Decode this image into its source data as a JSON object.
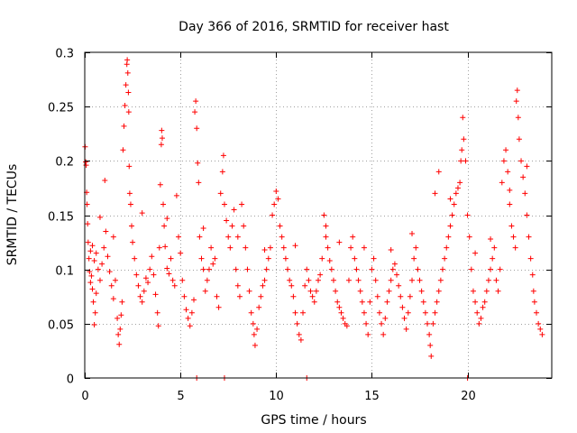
{
  "chart_data": {
    "type": "scatter",
    "title": "Day 366 of 2016, SRMTID for receiver hast",
    "xlabel": "GPS time / hours",
    "ylabel": "SRMTID / TECUs",
    "xlim": [
      0,
      24.4
    ],
    "ylim": [
      0,
      0.3
    ],
    "x_ticks": [
      0,
      5,
      10,
      15,
      20
    ],
    "x_tick_labels": [
      "0",
      "5",
      "10",
      "15",
      "20"
    ],
    "y_ticks": [
      0,
      0.05,
      0.1,
      0.15,
      0.2,
      0.25,
      0.3
    ],
    "y_tick_labels": [
      "0",
      "0.05",
      "0.1",
      "0.15",
      "0.2",
      "0.25",
      "0.3"
    ],
    "grid": true,
    "marker": "+",
    "color": "#ff0000",
    "series": [
      {
        "name": "SRMTID",
        "points": [
          [
            0.02,
            0.213
          ],
          [
            0.05,
            0.199
          ],
          [
            0.07,
            0.196
          ],
          [
            0.1,
            0.171
          ],
          [
            0.12,
            0.16
          ],
          [
            0.15,
            0.142
          ],
          [
            0.18,
            0.125
          ],
          [
            0.22,
            0.11
          ],
          [
            0.25,
            0.098
          ],
          [
            0.3,
            0.088
          ],
          [
            0.35,
            0.094
          ],
          [
            0.4,
            0.082
          ],
          [
            0.45,
            0.07
          ],
          [
            0.5,
            0.049
          ],
          [
            0.55,
            0.06
          ],
          [
            0.6,
            0.078
          ],
          [
            0.3,
            0.117
          ],
          [
            0.4,
            0.122
          ],
          [
            0.5,
            0.108
          ],
          [
            0.6,
            0.115
          ],
          [
            0.7,
            0.1
          ],
          [
            0.8,
            0.09
          ],
          [
            0.9,
            0.105
          ],
          [
            1.0,
            0.12
          ],
          [
            1.05,
            0.182
          ],
          [
            1.1,
            0.135
          ],
          [
            1.2,
            0.112
          ],
          [
            1.3,
            0.098
          ],
          [
            1.4,
            0.085
          ],
          [
            1.5,
            0.073
          ],
          [
            1.6,
            0.09
          ],
          [
            1.7,
            0.055
          ],
          [
            1.75,
            0.04
          ],
          [
            1.8,
            0.031
          ],
          [
            1.85,
            0.045
          ],
          [
            1.9,
            0.058
          ],
          [
            1.95,
            0.07
          ],
          [
            2.0,
            0.21
          ],
          [
            2.05,
            0.232
          ],
          [
            2.1,
            0.251
          ],
          [
            2.15,
            0.27
          ],
          [
            2.2,
            0.289
          ],
          [
            2.22,
            0.293
          ],
          [
            2.25,
            0.281
          ],
          [
            2.28,
            0.263
          ],
          [
            2.3,
            0.245
          ],
          [
            2.32,
            0.195
          ],
          [
            2.35,
            0.17
          ],
          [
            2.4,
            0.16
          ],
          [
            2.45,
            0.14
          ],
          [
            2.5,
            0.125
          ],
          [
            2.6,
            0.11
          ],
          [
            2.7,
            0.095
          ],
          [
            2.8,
            0.085
          ],
          [
            2.9,
            0.075
          ],
          [
            3.0,
            0.07
          ],
          [
            3.1,
            0.08
          ],
          [
            3.2,
            0.092
          ],
          [
            3.3,
            0.088
          ],
          [
            3.4,
            0.1
          ],
          [
            3.5,
            0.112
          ],
          [
            3.6,
            0.095
          ],
          [
            3.7,
            0.077
          ],
          [
            3.8,
            0.06
          ],
          [
            3.85,
            0.048
          ],
          [
            3.9,
            0.12
          ],
          [
            3.95,
            0.178
          ],
          [
            4.0,
            0.215
          ],
          [
            4.02,
            0.228
          ],
          [
            4.05,
            0.221
          ],
          [
            4.1,
            0.16
          ],
          [
            4.15,
            0.14
          ],
          [
            4.2,
            0.121
          ],
          [
            4.3,
            0.101
          ],
          [
            4.4,
            0.096
          ],
          [
            4.5,
            0.11
          ],
          [
            4.6,
            0.09
          ],
          [
            4.7,
            0.085
          ],
          [
            4.8,
            0.168
          ],
          [
            4.9,
            0.13
          ],
          [
            5.0,
            0.115
          ],
          [
            5.1,
            0.09
          ],
          [
            5.2,
            0.075
          ],
          [
            5.3,
            0.063
          ],
          [
            5.4,
            0.055
          ],
          [
            5.5,
            0.048
          ],
          [
            5.6,
            0.06
          ],
          [
            5.7,
            0.072
          ],
          [
            5.75,
            0.245
          ],
          [
            5.8,
            0.255
          ],
          [
            5.85,
            0.23
          ],
          [
            5.9,
            0.198
          ],
          [
            5.95,
            0.18
          ],
          [
            6.0,
            0.13
          ],
          [
            6.1,
            0.11
          ],
          [
            6.2,
            0.1
          ],
          [
            6.3,
            0.08
          ],
          [
            6.4,
            0.09
          ],
          [
            6.5,
            0.1
          ],
          [
            6.6,
            0.12
          ],
          [
            6.7,
            0.105
          ],
          [
            6.8,
            0.11
          ],
          [
            6.9,
            0.075
          ],
          [
            7.0,
            0.065
          ],
          [
            7.1,
            0.17
          ],
          [
            7.2,
            0.19
          ],
          [
            7.25,
            0.205
          ],
          [
            7.3,
            0.16
          ],
          [
            7.4,
            0.145
          ],
          [
            7.5,
            0.13
          ],
          [
            7.6,
            0.12
          ],
          [
            7.7,
            0.14
          ],
          [
            7.8,
            0.155
          ],
          [
            7.9,
            0.1
          ],
          [
            8.0,
            0.085
          ],
          [
            8.1,
            0.075
          ],
          [
            8.2,
            0.16
          ],
          [
            8.3,
            0.14
          ],
          [
            8.4,
            0.12
          ],
          [
            8.5,
            0.1
          ],
          [
            8.6,
            0.08
          ],
          [
            8.7,
            0.06
          ],
          [
            8.8,
            0.05
          ],
          [
            8.85,
            0.04
          ],
          [
            8.9,
            0.03
          ],
          [
            9.0,
            0.045
          ],
          [
            9.1,
            0.065
          ],
          [
            9.2,
            0.075
          ],
          [
            9.3,
            0.085
          ],
          [
            9.4,
            0.09
          ],
          [
            9.5,
            0.1
          ],
          [
            9.6,
            0.11
          ],
          [
            9.7,
            0.12
          ],
          [
            9.8,
            0.15
          ],
          [
            9.9,
            0.16
          ],
          [
            10.0,
            0.172
          ],
          [
            10.1,
            0.165
          ],
          [
            10.2,
            0.14
          ],
          [
            10.3,
            0.13
          ],
          [
            10.4,
            0.12
          ],
          [
            10.5,
            0.11
          ],
          [
            10.6,
            0.1
          ],
          [
            10.7,
            0.09
          ],
          [
            10.8,
            0.085
          ],
          [
            10.9,
            0.075
          ],
          [
            11.0,
            0.06
          ],
          [
            11.1,
            0.05
          ],
          [
            11.2,
            0.04
          ],
          [
            11.3,
            0.035
          ],
          [
            11.4,
            0.06
          ],
          [
            11.5,
            0.085
          ],
          [
            11.6,
            0.1
          ],
          [
            11.7,
            0.09
          ],
          [
            11.8,
            0.08
          ],
          [
            11.9,
            0.075
          ],
          [
            12.0,
            0.07
          ],
          [
            12.1,
            0.08
          ],
          [
            12.2,
            0.09
          ],
          [
            12.3,
            0.095
          ],
          [
            12.4,
            0.11
          ],
          [
            12.5,
            0.15
          ],
          [
            12.6,
            0.13
          ],
          [
            12.7,
            0.12
          ],
          [
            12.8,
            0.108
          ],
          [
            12.9,
            0.1
          ],
          [
            13.0,
            0.09
          ],
          [
            13.1,
            0.08
          ],
          [
            13.2,
            0.07
          ],
          [
            13.3,
            0.065
          ],
          [
            13.4,
            0.06
          ],
          [
            13.5,
            0.055
          ],
          [
            13.6,
            0.05
          ],
          [
            13.7,
            0.048
          ],
          [
            13.8,
            0.09
          ],
          [
            13.9,
            0.12
          ],
          [
            14.0,
            0.13
          ],
          [
            14.1,
            0.11
          ],
          [
            14.2,
            0.1
          ],
          [
            14.3,
            0.09
          ],
          [
            14.4,
            0.08
          ],
          [
            14.5,
            0.07
          ],
          [
            14.6,
            0.06
          ],
          [
            14.7,
            0.05
          ],
          [
            14.8,
            0.04
          ],
          [
            14.9,
            0.07
          ],
          [
            15.0,
            0.1
          ],
          [
            15.1,
            0.11
          ],
          [
            15.2,
            0.09
          ],
          [
            15.3,
            0.075
          ],
          [
            15.4,
            0.06
          ],
          [
            15.5,
            0.05
          ],
          [
            15.6,
            0.04
          ],
          [
            15.7,
            0.055
          ],
          [
            15.8,
            0.07
          ],
          [
            15.9,
            0.08
          ],
          [
            16.0,
            0.09
          ],
          [
            16.1,
            0.1
          ],
          [
            16.2,
            0.105
          ],
          [
            16.3,
            0.095
          ],
          [
            16.4,
            0.085
          ],
          [
            16.5,
            0.075
          ],
          [
            16.6,
            0.065
          ],
          [
            16.7,
            0.055
          ],
          [
            16.8,
            0.045
          ],
          [
            16.9,
            0.06
          ],
          [
            17.0,
            0.075
          ],
          [
            17.1,
            0.09
          ],
          [
            17.2,
            0.11
          ],
          [
            17.3,
            0.12
          ],
          [
            17.4,
            0.1
          ],
          [
            17.5,
            0.09
          ],
          [
            17.6,
            0.08
          ],
          [
            17.7,
            0.07
          ],
          [
            17.8,
            0.06
          ],
          [
            17.9,
            0.05
          ],
          [
            18.0,
            0.04
          ],
          [
            18.05,
            0.03
          ],
          [
            18.1,
            0.02
          ],
          [
            18.2,
            0.05
          ],
          [
            18.3,
            0.06
          ],
          [
            18.4,
            0.07
          ],
          [
            18.5,
            0.08
          ],
          [
            18.6,
            0.09
          ],
          [
            18.7,
            0.1
          ],
          [
            18.8,
            0.11
          ],
          [
            18.9,
            0.12
          ],
          [
            19.0,
            0.13
          ],
          [
            19.1,
            0.14
          ],
          [
            19.2,
            0.15
          ],
          [
            19.3,
            0.16
          ],
          [
            19.4,
            0.17
          ],
          [
            19.5,
            0.175
          ],
          [
            19.6,
            0.18
          ],
          [
            19.65,
            0.2
          ],
          [
            19.7,
            0.21
          ],
          [
            19.75,
            0.24
          ],
          [
            19.8,
            0.22
          ],
          [
            19.9,
            0.2
          ],
          [
            20.0,
            0.15
          ],
          [
            20.1,
            0.13
          ],
          [
            20.2,
            0.1
          ],
          [
            20.3,
            0.08
          ],
          [
            20.4,
            0.07
          ],
          [
            20.5,
            0.06
          ],
          [
            20.6,
            0.05
          ],
          [
            20.7,
            0.055
          ],
          [
            20.8,
            0.065
          ],
          [
            20.9,
            0.07
          ],
          [
            21.0,
            0.08
          ],
          [
            21.1,
            0.09
          ],
          [
            21.2,
            0.1
          ],
          [
            21.3,
            0.11
          ],
          [
            21.4,
            0.12
          ],
          [
            21.5,
            0.09
          ],
          [
            21.6,
            0.08
          ],
          [
            21.7,
            0.1
          ],
          [
            21.8,
            0.18
          ],
          [
            21.9,
            0.2
          ],
          [
            22.0,
            0.21
          ],
          [
            22.1,
            0.19
          ],
          [
            22.2,
            0.16
          ],
          [
            22.3,
            0.14
          ],
          [
            22.4,
            0.13
          ],
          [
            22.5,
            0.12
          ],
          [
            22.55,
            0.255
          ],
          [
            22.6,
            0.265
          ],
          [
            22.65,
            0.24
          ],
          [
            22.7,
            0.22
          ],
          [
            22.8,
            0.2
          ],
          [
            22.9,
            0.185
          ],
          [
            23.0,
            0.17
          ],
          [
            23.1,
            0.15
          ],
          [
            23.2,
            0.13
          ],
          [
            23.3,
            0.11
          ],
          [
            23.4,
            0.095
          ],
          [
            23.45,
            0.08
          ],
          [
            23.5,
            0.07
          ],
          [
            23.6,
            0.06
          ],
          [
            23.7,
            0.05
          ],
          [
            23.8,
            0.045
          ],
          [
            23.9,
            0.04
          ],
          [
            5.85,
            0.0
          ],
          [
            7.3,
            0.0
          ],
          [
            11.6,
            0.0
          ],
          [
            20.0,
            0.0
          ],
          [
            0.8,
            0.148
          ],
          [
            1.5,
            0.13
          ],
          [
            3.0,
            0.152
          ],
          [
            4.3,
            0.147
          ],
          [
            6.2,
            0.138
          ],
          [
            8.0,
            0.13
          ],
          [
            9.4,
            0.118
          ],
          [
            11.0,
            0.122
          ],
          [
            12.6,
            0.14
          ],
          [
            13.3,
            0.125
          ],
          [
            14.6,
            0.12
          ],
          [
            16.0,
            0.118
          ],
          [
            17.1,
            0.133
          ],
          [
            18.3,
            0.17
          ],
          [
            18.5,
            0.19
          ],
          [
            19.1,
            0.165
          ],
          [
            20.4,
            0.115
          ],
          [
            21.2,
            0.128
          ],
          [
            22.2,
            0.173
          ],
          [
            23.1,
            0.195
          ]
        ]
      }
    ]
  }
}
